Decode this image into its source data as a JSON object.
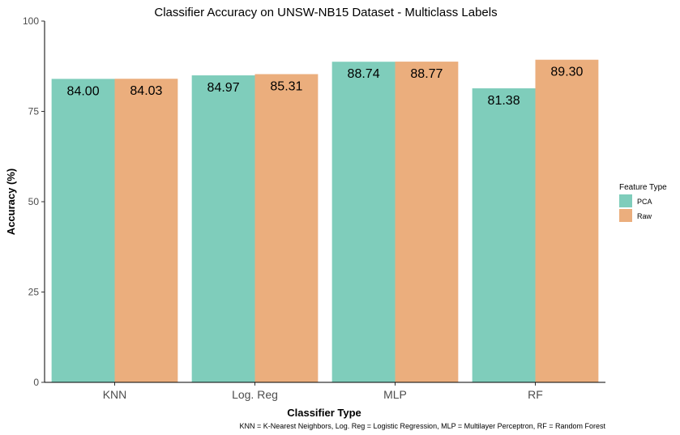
{
  "chart_data": {
    "type": "bar",
    "title": "Classifier Accuracy on UNSW-NB15 Dataset - Multiclass Labels",
    "xlabel": "Classifier Type",
    "ylabel": "Accuracy (%)",
    "categories": [
      "KNN",
      "Log. Reg",
      "MLP",
      "RF"
    ],
    "ylim": [
      0,
      100
    ],
    "yticks": [
      0,
      25,
      50,
      75,
      100
    ],
    "series": [
      {
        "name": "PCA",
        "color": "#7FCDBB",
        "values": [
          84.0,
          84.97,
          88.74,
          81.38
        ],
        "labels": [
          "84.00",
          "84.97",
          "88.74",
          "81.38"
        ]
      },
      {
        "name": "Raw",
        "color": "#EBAE7D",
        "values": [
          84.03,
          85.31,
          88.77,
          89.3
        ],
        "labels": [
          "84.03",
          "85.31",
          "88.77",
          "89.30"
        ]
      }
    ],
    "legend": {
      "title": "Feature Type",
      "placement": "right"
    },
    "grid": false,
    "caption": "KNN = K-Nearest Neighbors, Log. Reg = Logistic Regression, MLP = Multilayer Perceptron, RF = Random Forest"
  }
}
